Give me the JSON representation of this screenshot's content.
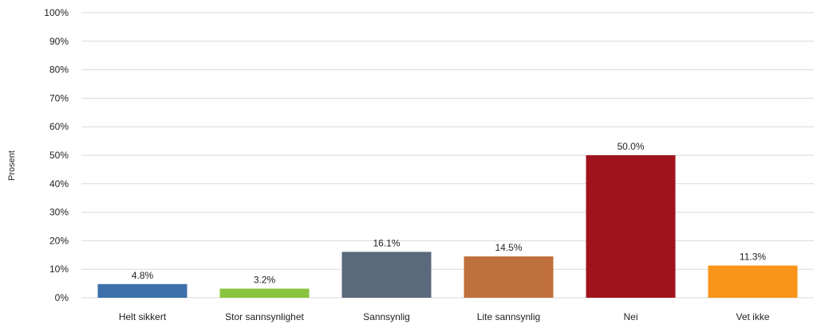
{
  "chart_data": {
    "type": "bar",
    "title": "",
    "xlabel": "",
    "ylabel": "Prosent",
    "ylim": [
      0,
      100
    ],
    "yticks": [
      "0%",
      "10%",
      "20%",
      "30%",
      "40%",
      "50%",
      "60%",
      "70%",
      "80%",
      "90%",
      "100%"
    ],
    "grid": true,
    "legend": "none",
    "categories": [
      "Helt sikkert",
      "Stor sannsynlighet",
      "Sannsynlig",
      "Lite sannsynlig",
      "Nei",
      "Vet ikke"
    ],
    "values": [
      4.8,
      3.2,
      16.1,
      14.5,
      50.0,
      11.3
    ],
    "data_labels": [
      "4.8%",
      "3.2%",
      "16.1%",
      "14.5%",
      "50.0%",
      "11.3%"
    ],
    "colors": [
      "#3d6fab",
      "#8ac43f",
      "#5a6a7c",
      "#c0703a",
      "#a0121c",
      "#f79419"
    ]
  }
}
